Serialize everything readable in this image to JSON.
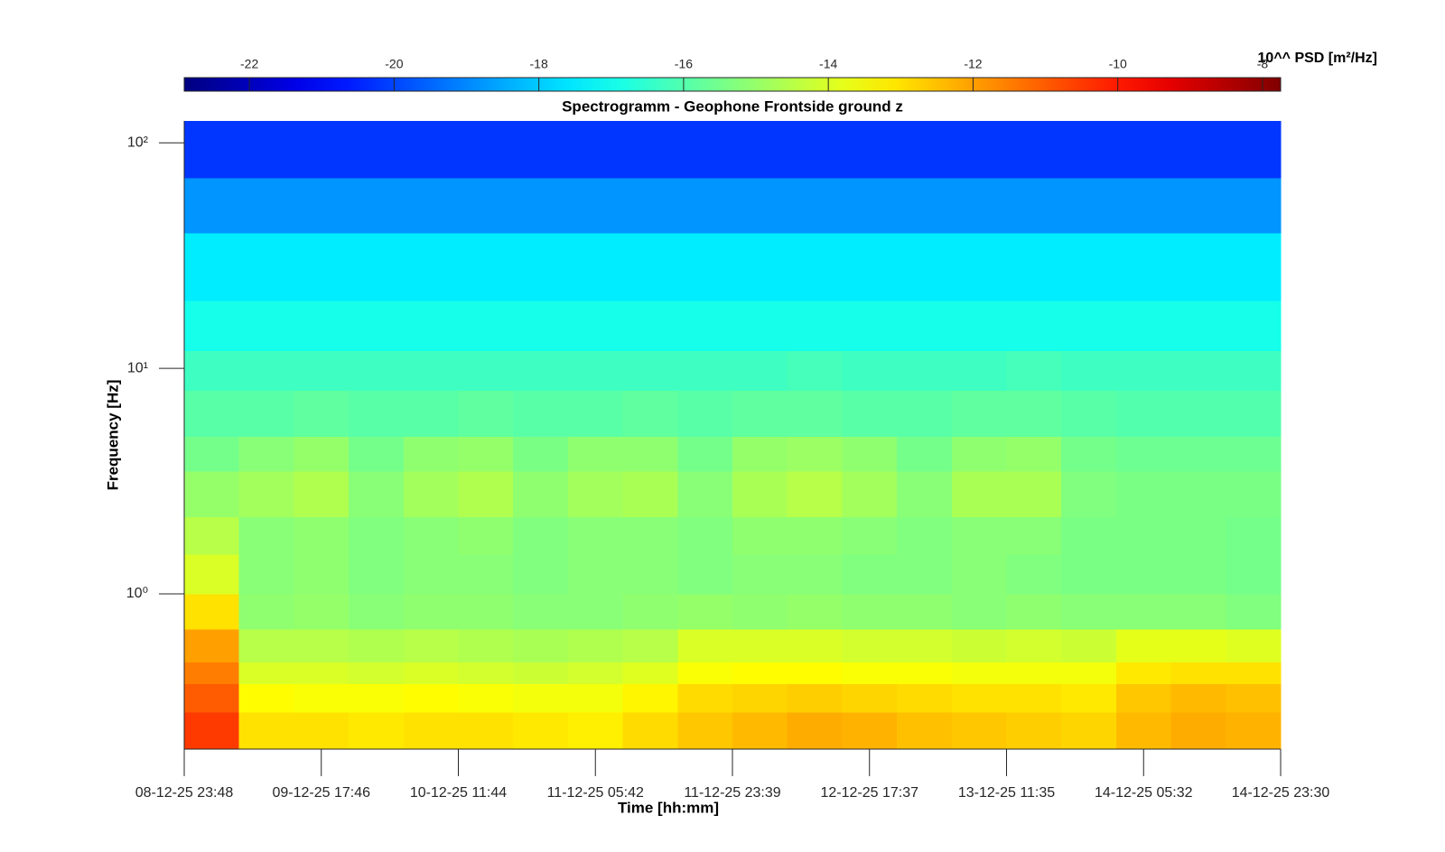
{
  "chart_data": {
    "type": "heatmap",
    "title": "Spectrogramm - Geophone Frontside ground z",
    "xlabel": "Time [hh:mm]",
    "ylabel": "Frequency [Hz]",
    "xticks": [
      "08-12-25 23:48",
      "09-12-25 17:46",
      "10-12-25 11:44",
      "11-12-25 05:42",
      "11-12-25 23:39",
      "12-12-25 17:37",
      "13-12-25 11:35",
      "14-12-25 05:32",
      "14-12-25 23:30"
    ],
    "yscale": "log",
    "ylim": [
      0.205,
      125
    ],
    "yticks": [
      {
        "value": 1,
        "label": "10⁰"
      },
      {
        "value": 10,
        "label": "10¹"
      },
      {
        "value": 100,
        "label": "10²"
      }
    ],
    "y_edges": [
      0.205,
      0.3,
      0.4,
      0.5,
      0.7,
      1.0,
      1.5,
      2.2,
      3.5,
      5,
      8,
      12,
      20,
      40,
      70,
      125
    ],
    "colormap": "jet",
    "colorbar": {
      "label": "10^^ PSD [m²/Hz]",
      "lim": [
        -22.9,
        -7.75
      ],
      "ticks": [
        -22,
        -20,
        -18,
        -16,
        -14,
        -12,
        -10,
        -8
      ]
    },
    "z": [
      [
        -10.5,
        -13,
        -13,
        -13.1,
        -13,
        -13,
        -13.1,
        -13.2,
        -12.9,
        -12.6,
        -12.4,
        -12.2,
        -12.3,
        -12.5,
        -12.6,
        -12.7,
        -12.8,
        -12.4,
        -12.2,
        -12.3
      ],
      [
        -11,
        -13.4,
        -13.5,
        -13.5,
        -13.4,
        -13.5,
        -13.6,
        -13.6,
        -13.3,
        -12.9,
        -12.8,
        -12.7,
        -12.8,
        -12.9,
        -13,
        -13,
        -13.1,
        -12.6,
        -12.4,
        -12.5
      ],
      [
        -11.5,
        -14,
        -14,
        -14.1,
        -14,
        -14.1,
        -14.2,
        -14.1,
        -13.9,
        -13.5,
        -13.4,
        -13.4,
        -13.5,
        -13.5,
        -13.6,
        -13.6,
        -13.6,
        -13.1,
        -13,
        -13
      ],
      [
        -12,
        -14.5,
        -14.5,
        -14.6,
        -14.5,
        -14.6,
        -14.7,
        -14.6,
        -14.5,
        -14,
        -14,
        -14,
        -14.1,
        -14.1,
        -14.2,
        -14.1,
        -14.2,
        -13.8,
        -13.8,
        -13.9
      ],
      [
        -13,
        -15.1,
        -15,
        -15.2,
        -15.1,
        -15.1,
        -15.2,
        -15.2,
        -15.1,
        -15,
        -15.1,
        -15,
        -15.1,
        -15.1,
        -15.2,
        -15.1,
        -15.2,
        -15.2,
        -15.2,
        -15.3
      ],
      [
        -14,
        -15.2,
        -15.1,
        -15.3,
        -15.2,
        -15.2,
        -15.3,
        -15.2,
        -15.2,
        -15.3,
        -15.2,
        -15.2,
        -15.3,
        -15.3,
        -15.2,
        -15.3,
        -15.4,
        -15.4,
        -15.4,
        -15.5
      ],
      [
        -14.5,
        -15.2,
        -15.1,
        -15.3,
        -15.2,
        -15.1,
        -15.3,
        -15.2,
        -15.2,
        -15.3,
        -15.1,
        -15.1,
        -15.2,
        -15.3,
        -15.2,
        -15.2,
        -15.4,
        -15.4,
        -15.4,
        -15.5
      ],
      [
        -15,
        -14.8,
        -14.6,
        -15.2,
        -14.8,
        -14.6,
        -15.1,
        -14.8,
        -14.7,
        -15.2,
        -14.7,
        -14.5,
        -14.8,
        -15.2,
        -14.7,
        -14.7,
        -15.3,
        -15.4,
        -15.4,
        -15.4
      ],
      [
        -15.5,
        -15.2,
        -15,
        -15.5,
        -15.1,
        -15,
        -15.4,
        -15.1,
        -15.1,
        -15.5,
        -15,
        -14.9,
        -15.1,
        -15.5,
        -15.1,
        -15,
        -15.5,
        -15.6,
        -15.6,
        -15.6
      ],
      [
        -15.9,
        -15.9,
        -15.8,
        -15.9,
        -15.9,
        -15.8,
        -15.9,
        -15.9,
        -15.8,
        -15.9,
        -15.8,
        -15.8,
        -15.9,
        -15.9,
        -15.8,
        -15.8,
        -15.9,
        -16,
        -16,
        -16
      ],
      [
        -16.3,
        -16.3,
        -16.3,
        -16.3,
        -16.3,
        -16.3,
        -16.3,
        -16.3,
        -16.3,
        -16.3,
        -16.3,
        -16.2,
        -16.3,
        -16.3,
        -16.3,
        -16.2,
        -16.3,
        -16.3,
        -16.3,
        -16.3
      ],
      [
        -16.9,
        -16.9,
        -16.9,
        -16.9,
        -16.9,
        -16.9,
        -16.9,
        -16.9,
        -16.9,
        -16.9,
        -16.9,
        -16.9,
        -16.9,
        -16.9,
        -16.9,
        -16.9,
        -16.9,
        -16.9,
        -16.9,
        -16.9
      ],
      [
        -17.5,
        -17.5,
        -17.5,
        -17.5,
        -17.5,
        -17.5,
        -17.5,
        -17.5,
        -17.5,
        -17.5,
        -17.5,
        -17.5,
        -17.5,
        -17.5,
        -17.5,
        -17.5,
        -17.5,
        -17.5,
        -17.5,
        -17.5
      ],
      [
        -18.8,
        -18.8,
        -18.8,
        -18.8,
        -18.8,
        -18.8,
        -18.8,
        -18.8,
        -18.8,
        -18.8,
        -18.8,
        -18.8,
        -18.8,
        -18.8,
        -18.8,
        -18.8,
        -18.8,
        -18.8,
        -18.8,
        -18.8
      ],
      [
        -20.2,
        -20.2,
        -20.2,
        -20.2,
        -20.2,
        -20.2,
        -20.2,
        -20.2,
        -20.2,
        -20.2,
        -20.2,
        -20.2,
        -20.2,
        -20.2,
        -20.2,
        -20.2,
        -20.2,
        -20.2,
        -20.2,
        -20.2
      ]
    ]
  }
}
